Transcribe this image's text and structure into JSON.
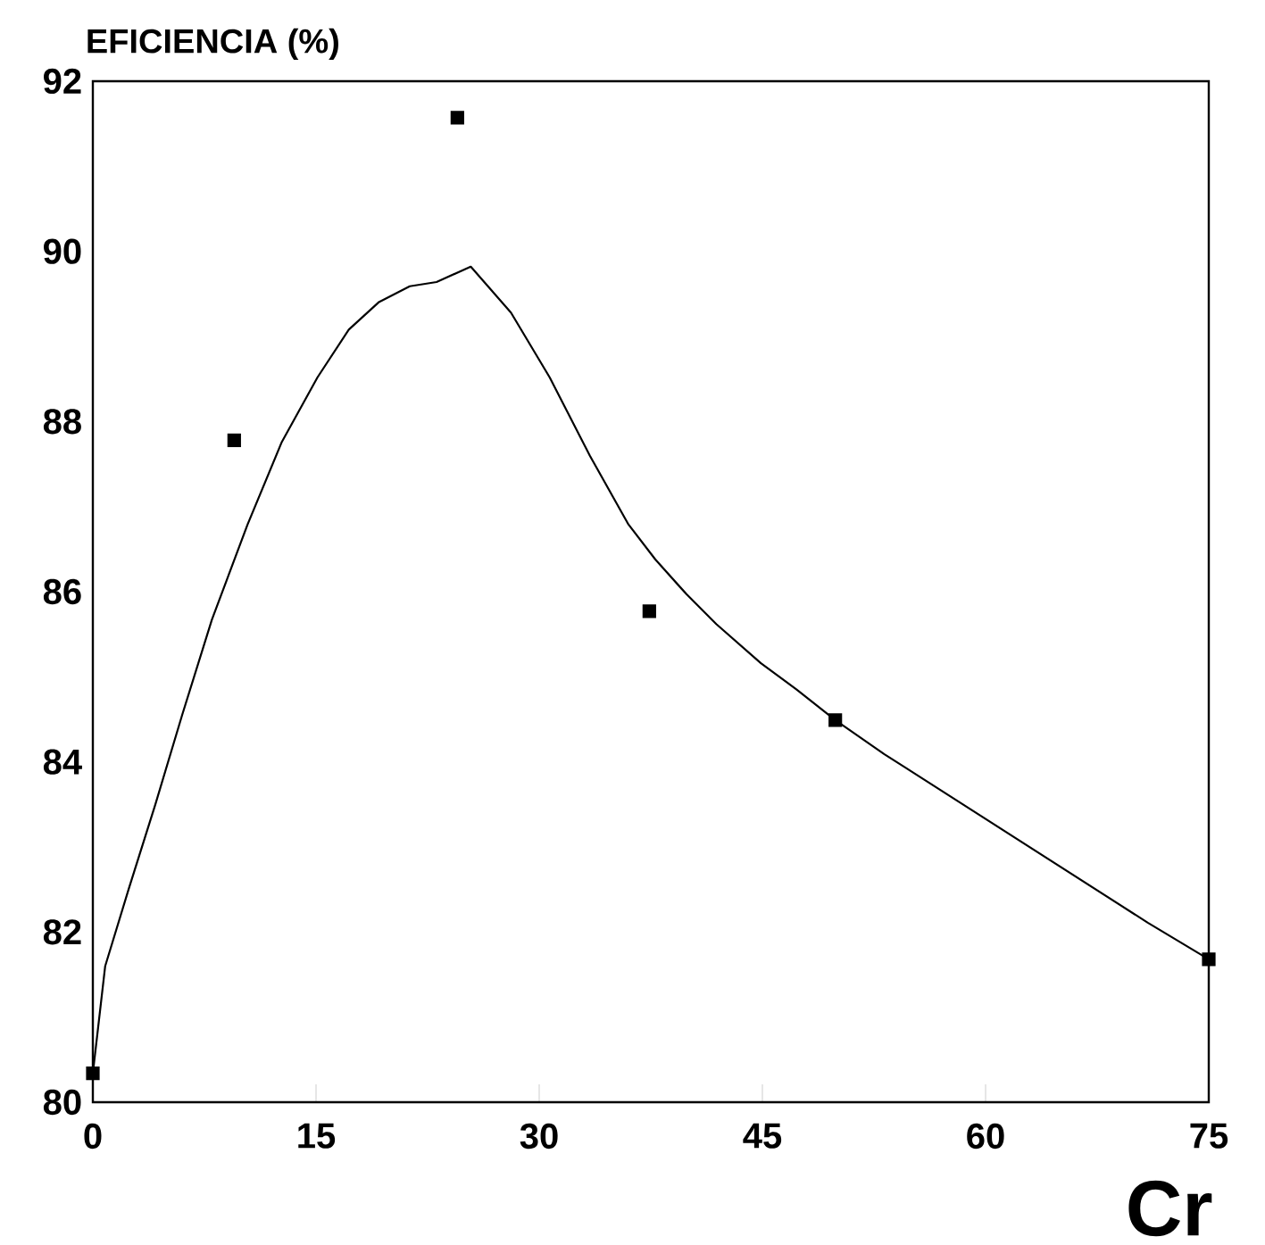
{
  "chart_data": {
    "type": "line",
    "xlabel": "Cr",
    "ylabel": "EFICIENCIA  (%)",
    "xlim": [
      0,
      75
    ],
    "ylim": [
      80,
      92
    ],
    "xticks": [
      0,
      15,
      30,
      45,
      60,
      75
    ],
    "yticks": [
      80,
      82,
      84,
      86,
      88,
      90,
      92
    ],
    "grid": false,
    "series": [
      {
        "type": "scatter",
        "marker": "square",
        "color": "#000000",
        "x": [
          0,
          9.5,
          24.5,
          37.4,
          49.9,
          75
        ],
        "values": [
          80.34,
          87.78,
          91.57,
          85.77,
          84.49,
          81.68
        ]
      },
      {
        "marker": "none",
        "line_style": "solid",
        "color": "#000000",
        "x": [
          0,
          0.83,
          2.4,
          4.2,
          6.0,
          8.0,
          10.4,
          12.7,
          15.1,
          17.2,
          19.2,
          21.3,
          23.1,
          25.4,
          28.1,
          30.7,
          33.4,
          36.0,
          37.8,
          39.9,
          41.9,
          44.9,
          47.3,
          49.9,
          53.2,
          59.1,
          65.0,
          70.9,
          75
        ],
        "values": [
          80.34,
          81.6,
          82.5,
          83.5,
          84.55,
          85.67,
          86.79,
          87.76,
          88.52,
          89.08,
          89.4,
          89.59,
          89.64,
          89.82,
          89.28,
          88.52,
          87.6,
          86.79,
          86.38,
          85.97,
          85.62,
          85.16,
          84.85,
          84.49,
          84.09,
          83.43,
          82.77,
          82.11,
          81.68
        ]
      }
    ]
  }
}
